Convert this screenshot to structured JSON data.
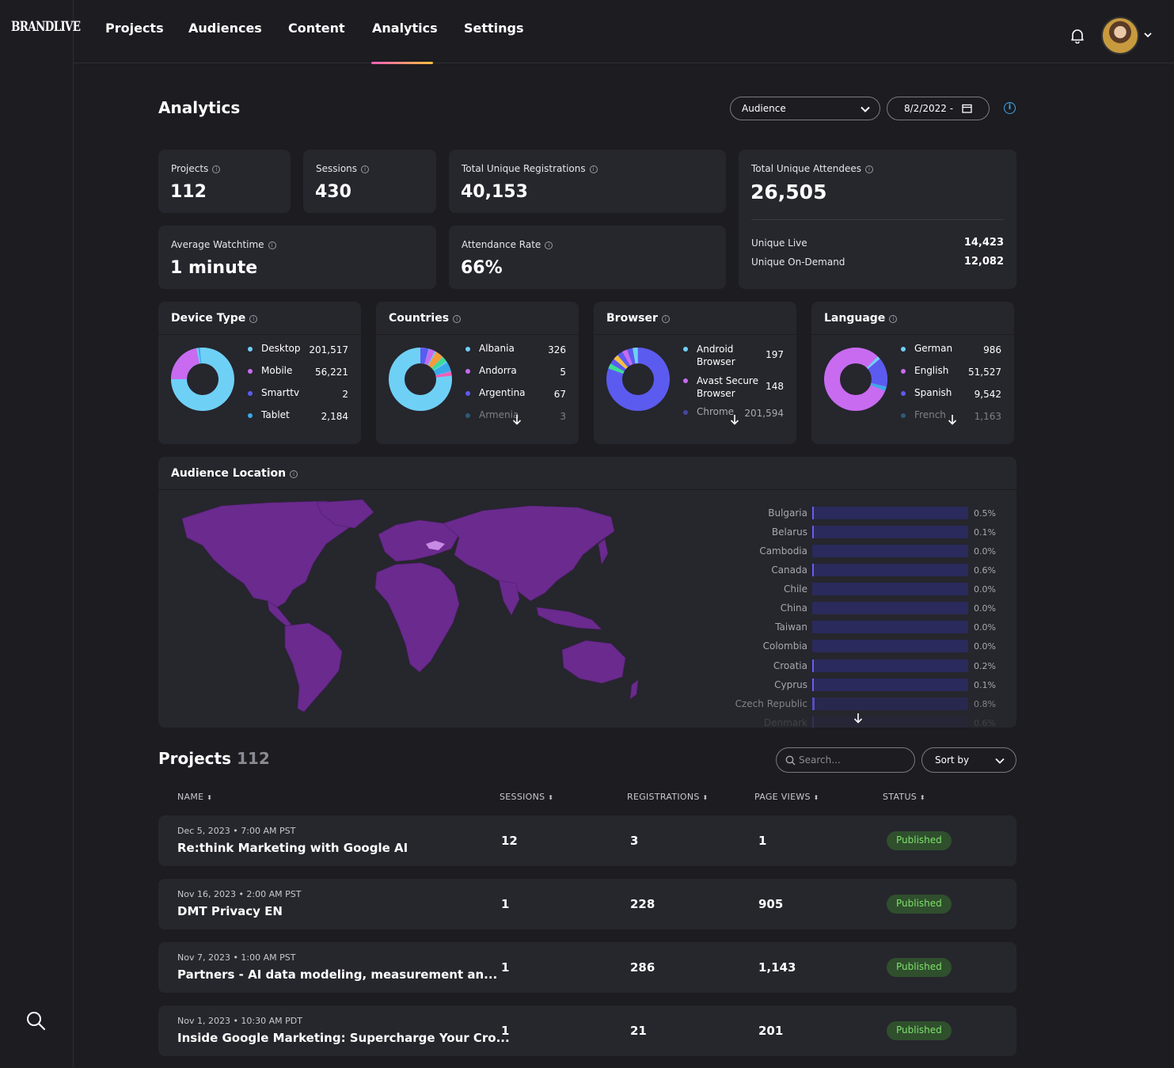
{
  "brand": "BRANDLIVE",
  "nav": [
    {
      "label": "Projects"
    },
    {
      "label": "Audiences"
    },
    {
      "label": "Content"
    },
    {
      "label": "Analytics",
      "active": true
    },
    {
      "label": "Settings"
    }
  ],
  "page": {
    "title": "Analytics",
    "audience_select": "Audience",
    "date_select": "8/2/2022 -"
  },
  "stats": {
    "projects": {
      "label": "Projects",
      "value": "112"
    },
    "sessions": {
      "label": "Sessions",
      "value": "430"
    },
    "registrations": {
      "label": "Total Unique Registrations",
      "value": "40,153"
    },
    "attendees": {
      "label": "Total Unique Attendees",
      "value": "26,505",
      "live_label": "Unique Live",
      "live_value": "14,423",
      "ondemand_label": "Unique On-Demand",
      "ondemand_value": "12,082"
    },
    "watchtime": {
      "label": "Average Watchtime",
      "value": "1 minute"
    },
    "attendance": {
      "label": "Attendance Rate",
      "value": "66%"
    }
  },
  "device": {
    "title": "Device Type",
    "items": [
      {
        "name": "Desktop",
        "value": "201,517",
        "color": "#6fd0f6"
      },
      {
        "name": "Mobile",
        "value": "56,221",
        "color": "#c86bf0"
      },
      {
        "name": "Smarttv",
        "value": "2",
        "color": "#5b5bf0"
      },
      {
        "name": "Tablet",
        "value": "2,184",
        "color": "#3aa9e9"
      }
    ]
  },
  "countries": {
    "title": "Countries",
    "items": [
      {
        "name": "Albania",
        "value": "326",
        "color": "#6fd0f6"
      },
      {
        "name": "Andorra",
        "value": "5",
        "color": "#c86bf0"
      },
      {
        "name": "Argentina",
        "value": "67",
        "color": "#5b5bf0"
      },
      {
        "name": "Armenia",
        "value": "3",
        "color": "#3aa9e9"
      }
    ]
  },
  "browser": {
    "title": "Browser",
    "items": [
      {
        "name": "Android Browser",
        "value": "197",
        "color": "#6fd0f6"
      },
      {
        "name": "Avast Secure Browser",
        "value": "148",
        "color": "#c86bf0"
      },
      {
        "name": "Chrome",
        "value": "201,594",
        "color": "#5b5bf0"
      }
    ]
  },
  "language": {
    "title": "Language",
    "items": [
      {
        "name": "German",
        "value": "986",
        "color": "#6fd0f6"
      },
      {
        "name": "English",
        "value": "51,527",
        "color": "#c86bf0"
      },
      {
        "name": "Spanish",
        "value": "9,542",
        "color": "#5b5bf0"
      },
      {
        "name": "French",
        "value": "1,163",
        "color": "#3aa9e9"
      }
    ]
  },
  "location": {
    "title": "Audience Location",
    "bars": [
      {
        "country": "Bulgaria",
        "pct": "0.5%",
        "frac": 0.005
      },
      {
        "country": "Belarus",
        "pct": "0.1%",
        "frac": 0.001
      },
      {
        "country": "Cambodia",
        "pct": "0.0%",
        "frac": 0.0
      },
      {
        "country": "Canada",
        "pct": "0.6%",
        "frac": 0.006
      },
      {
        "country": "Chile",
        "pct": "0.0%",
        "frac": 0.0
      },
      {
        "country": "China",
        "pct": "0.0%",
        "frac": 0.0
      },
      {
        "country": "Taiwan",
        "pct": "0.0%",
        "frac": 0.0
      },
      {
        "country": "Colombia",
        "pct": "0.0%",
        "frac": 0.0
      },
      {
        "country": "Croatia",
        "pct": "0.2%",
        "frac": 0.002
      },
      {
        "country": "Cyprus",
        "pct": "0.1%",
        "frac": 0.001
      },
      {
        "country": "Czech Republic",
        "pct": "0.8%",
        "frac": 0.008
      },
      {
        "country": "Denmark",
        "pct": "0.6%",
        "frac": 0.006
      }
    ]
  },
  "projects": {
    "title": "Projects",
    "count": "112",
    "search_placeholder": "Search...",
    "sort_label": "Sort by",
    "columns": [
      "NAME",
      "SESSIONS",
      "REGISTRATIONS",
      "PAGE VIEWS",
      "STATUS"
    ],
    "rows": [
      {
        "date": "Dec 5, 2023 • 7:00 AM PST",
        "name": "Re:think Marketing with Google AI",
        "sessions": "12",
        "registrations": "3",
        "page_views": "1",
        "status": "Published"
      },
      {
        "date": "Nov 16, 2023 • 2:00 AM PST",
        "name": "DMT Privacy EN",
        "sessions": "1",
        "registrations": "228",
        "page_views": "905",
        "status": "Published"
      },
      {
        "date": "Nov 7, 2023 • 1:00 AM PST",
        "name": "Partners - AI data modeling, measurement an...",
        "sessions": "1",
        "registrations": "286",
        "page_views": "1,143",
        "status": "Published"
      },
      {
        "date": "Nov 1, 2023 • 10:30 AM PDT",
        "name": "Inside Google Marketing: Supercharge Your Cro...",
        "sessions": "1",
        "registrations": "21",
        "page_views": "201",
        "status": "Published"
      }
    ]
  }
}
